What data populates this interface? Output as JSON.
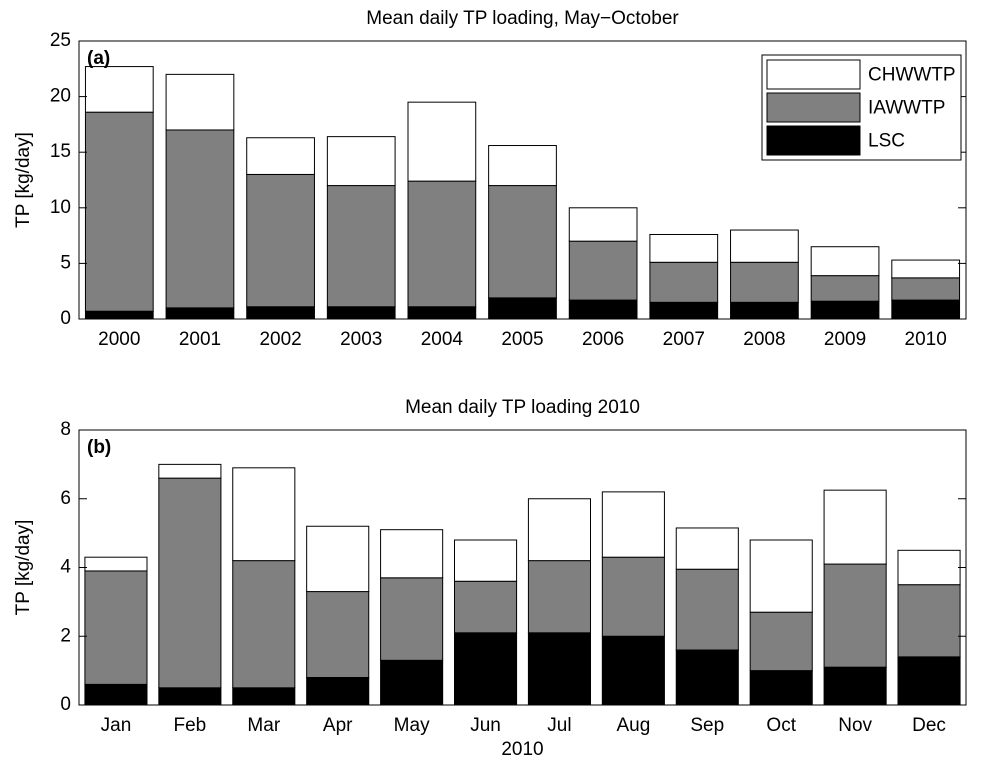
{
  "chart_data": [
    {
      "type": "bar",
      "stacked": true,
      "title": "Mean daily TP loading, May−October",
      "annotation": "(a)",
      "ylabel": "TP [kg/day]",
      "categories": [
        "2000",
        "2001",
        "2002",
        "2003",
        "2004",
        "2005",
        "2006",
        "2007",
        "2008",
        "2009",
        "2010"
      ],
      "series": [
        {
          "name": "LSC",
          "color": "#000000",
          "values": [
            0.7,
            1.0,
            1.1,
            1.1,
            1.1,
            1.9,
            1.7,
            1.5,
            1.5,
            1.6,
            1.7
          ]
        },
        {
          "name": "IAWWTP",
          "color": "#808080",
          "values": [
            17.9,
            16.0,
            11.9,
            10.9,
            11.3,
            10.1,
            5.3,
            3.6,
            3.6,
            2.3,
            2.0
          ]
        },
        {
          "name": "CHWWTP",
          "color": "#ffffff",
          "values": [
            4.1,
            5.0,
            3.3,
            4.4,
            7.1,
            3.6,
            3.0,
            2.5,
            2.9,
            2.6,
            1.6
          ]
        }
      ],
      "ylim": [
        0,
        25
      ],
      "yticks": [
        0,
        5,
        10,
        15,
        20,
        25
      ],
      "legend": "upper right"
    },
    {
      "type": "bar",
      "stacked": true,
      "title": "Mean daily TP loading 2010",
      "annotation": "(b)",
      "ylabel": "TP [kg/day]",
      "xlabel": "2010",
      "categories": [
        "Jan",
        "Feb",
        "Mar",
        "Apr",
        "May",
        "Jun",
        "Jul",
        "Aug",
        "Sep",
        "Oct",
        "Nov",
        "Dec"
      ],
      "series": [
        {
          "name": "LSC",
          "color": "#000000",
          "values": [
            0.6,
            0.5,
            0.5,
            0.8,
            1.3,
            2.1,
            2.1,
            2.0,
            1.6,
            1.0,
            1.1,
            1.4
          ]
        },
        {
          "name": "IAWWTP",
          "color": "#808080",
          "values": [
            3.3,
            6.1,
            3.7,
            2.5,
            2.4,
            1.5,
            2.1,
            2.3,
            2.35,
            1.7,
            3.0,
            2.1
          ]
        },
        {
          "name": "CHWWTP",
          "color": "#ffffff",
          "values": [
            0.4,
            0.4,
            2.7,
            1.9,
            1.4,
            1.2,
            1.8,
            1.9,
            1.2,
            2.1,
            2.15,
            1.0
          ]
        }
      ],
      "ylim": [
        0,
        8
      ],
      "yticks": [
        0,
        2,
        4,
        6,
        8
      ]
    }
  ]
}
